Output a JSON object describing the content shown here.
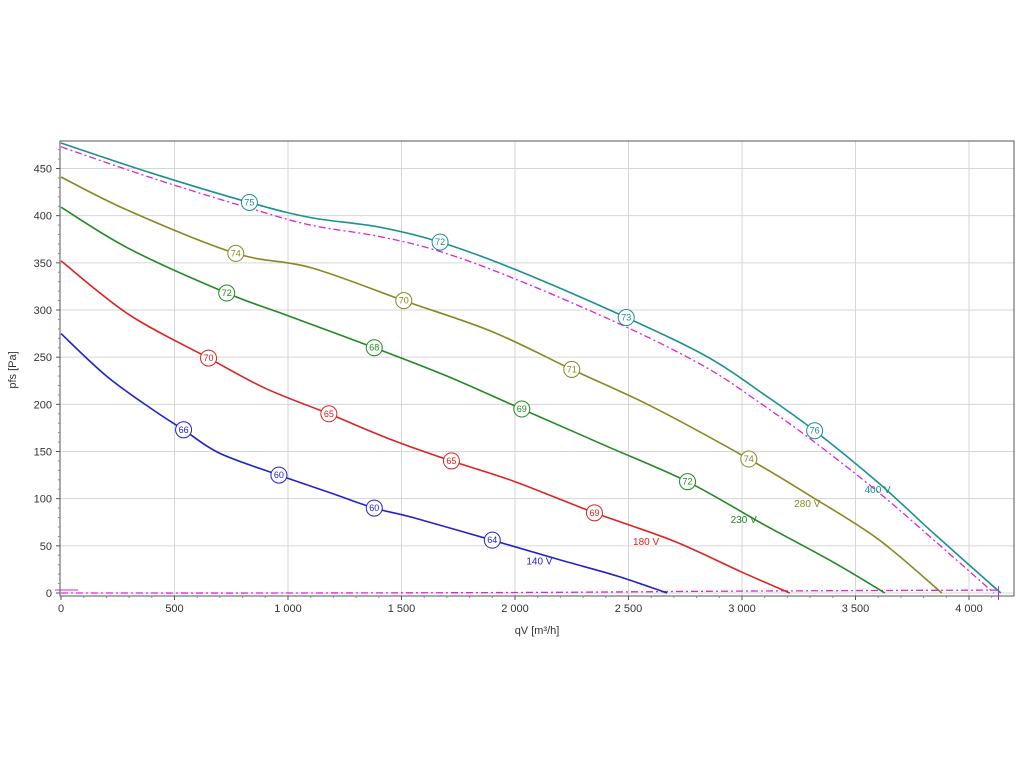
{
  "chart_data": {
    "type": "line",
    "title": "",
    "xlabel": "qV [m³/h]",
    "ylabel": "pfs [Pa]",
    "xlim": [
      0,
      4200
    ],
    "ylim": [
      0,
      480
    ],
    "xticks": [
      0,
      500,
      1000,
      1500,
      2000,
      2500,
      3000,
      3500,
      4000
    ],
    "xtick_labels": [
      "0",
      "500",
      "1 000",
      "1 500",
      "2 000",
      "2 500",
      "3 000",
      "3 500",
      "4 000"
    ],
    "yticks": [
      0,
      50,
      100,
      150,
      200,
      250,
      300,
      350,
      400,
      450
    ],
    "ytick_labels": [
      "0",
      "50",
      "100",
      "150",
      "200",
      "250",
      "300",
      "350",
      "400",
      "450"
    ],
    "grid": true,
    "series": [
      {
        "name": "140 V",
        "color": "#2222cc",
        "label_at": [
          2050,
          30
        ],
        "x": [
          0,
          200,
          400,
          540,
          700,
          960,
          1200,
          1380,
          1550,
          1900,
          2200,
          2450,
          2670
        ],
        "y": [
          275,
          230,
          195,
          173,
          148,
          125,
          105,
          90,
          80,
          56,
          35,
          18,
          0
        ],
        "markers": [
          {
            "x": 540,
            "y": 173,
            "label": "66"
          },
          {
            "x": 960,
            "y": 125,
            "label": "60"
          },
          {
            "x": 1380,
            "y": 90,
            "label": "60"
          },
          {
            "x": 1900,
            "y": 56,
            "label": "64"
          }
        ]
      },
      {
        "name": "180 V",
        "color": "#dd2222",
        "label_at": [
          2520,
          51
        ],
        "x": [
          0,
          300,
          650,
          900,
          1180,
          1450,
          1720,
          2000,
          2350,
          2700,
          3000,
          3210
        ],
        "y": [
          352,
          295,
          249,
          217,
          190,
          163,
          140,
          118,
          85,
          55,
          22,
          0
        ],
        "markers": [
          {
            "x": 650,
            "y": 249,
            "label": "70"
          },
          {
            "x": 1180,
            "y": 190,
            "label": "65"
          },
          {
            "x": 1720,
            "y": 140,
            "label": "65"
          },
          {
            "x": 2350,
            "y": 85,
            "label": "69"
          }
        ]
      },
      {
        "name": "230 V",
        "color": "#228822",
        "label_at": [
          2950,
          74
        ],
        "x": [
          0,
          300,
          730,
          1000,
          1380,
          1700,
          2030,
          2400,
          2760,
          3100,
          3400,
          3630
        ],
        "y": [
          409,
          365,
          318,
          294,
          260,
          230,
          195,
          156,
          118,
          72,
          33,
          0
        ],
        "markers": [
          {
            "x": 730,
            "y": 318,
            "label": "72"
          },
          {
            "x": 1380,
            "y": 260,
            "label": "68"
          },
          {
            "x": 2030,
            "y": 195,
            "label": "69"
          },
          {
            "x": 2760,
            "y": 118,
            "label": "72"
          }
        ]
      },
      {
        "name": "280 V",
        "color": "#888822",
        "label_at": [
          3230,
          91
        ],
        "x": [
          0,
          300,
          770,
          1100,
          1510,
          1900,
          2250,
          2600,
          3030,
          3300,
          3600,
          3880
        ],
        "y": [
          441,
          405,
          360,
          345,
          310,
          277,
          237,
          198,
          142,
          103,
          57,
          0
        ],
        "markers": [
          {
            "x": 770,
            "y": 360,
            "label": "74"
          },
          {
            "x": 1510,
            "y": 310,
            "label": "70"
          },
          {
            "x": 2250,
            "y": 237,
            "label": "71"
          },
          {
            "x": 3030,
            "y": 142,
            "label": "74"
          }
        ]
      },
      {
        "name": "400 V",
        "color": "#1a9090",
        "label_at": [
          3540,
          106
        ],
        "x": [
          0,
          400,
          830,
          1100,
          1400,
          1670,
          2000,
          2490,
          2850,
          3100,
          3320,
          3600,
          3850,
          4140
        ],
        "y": [
          477,
          445,
          414,
          398,
          388,
          372,
          343,
          292,
          250,
          210,
          172,
          117,
          62,
          0
        ],
        "markers": [
          {
            "x": 830,
            "y": 414,
            "label": "75"
          },
          {
            "x": 1670,
            "y": 372,
            "label": "72"
          },
          {
            "x": 2490,
            "y": 292,
            "label": "73"
          },
          {
            "x": 3320,
            "y": 172,
            "label": "76"
          }
        ]
      }
    ],
    "reference_lines": [
      {
        "color": "#dd22dd",
        "style": "dash-dot",
        "x": [
          0,
          400,
          830,
          1100,
          1400,
          1670,
          2000,
          2490,
          2850,
          3100,
          3320,
          3600,
          3850,
          4110
        ],
        "y": [
          473,
          440,
          408,
          390,
          378,
          362,
          333,
          282,
          238,
          198,
          160,
          107,
          55,
          0
        ]
      },
      {
        "color": "#dd22dd",
        "style": "dash-dot",
        "x": [
          0,
          1000,
          2000,
          3000,
          4000,
          4140
        ],
        "y": [
          0,
          0,
          0.5,
          2,
          3,
          3
        ]
      }
    ]
  }
}
